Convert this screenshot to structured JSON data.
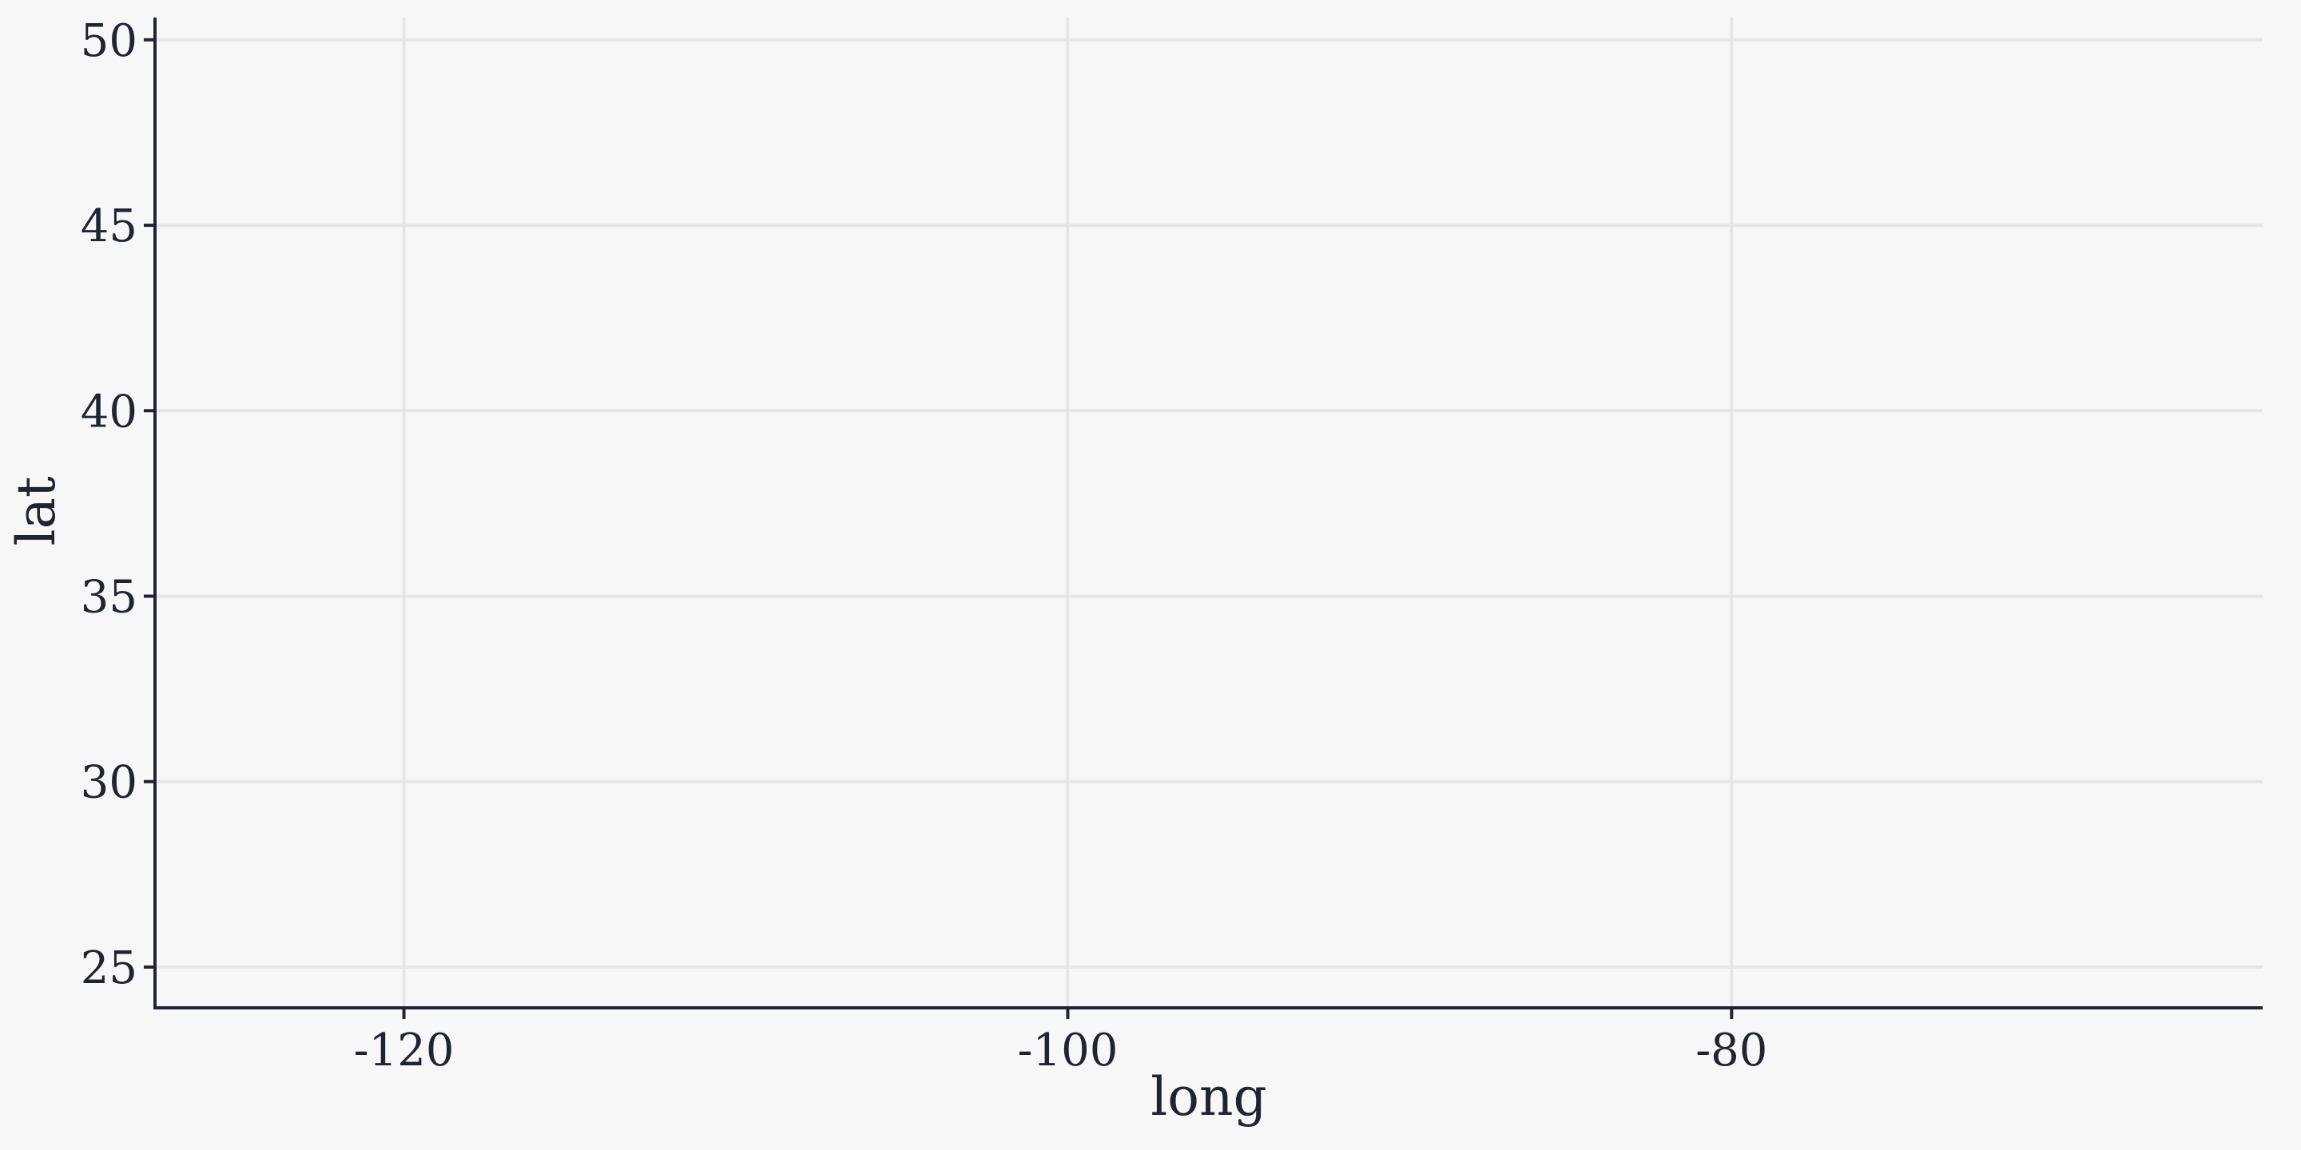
{
  "chart_data": {
    "type": "scatter",
    "title": "",
    "xlabel": "long",
    "ylabel": "lat",
    "xlim": [
      -127.5,
      -64.0
    ],
    "ylim": [
      23.9,
      50.6
    ],
    "x_ticks": [
      -120,
      -100,
      -80
    ],
    "x_tick_labels": [
      "-120",
      "-100",
      "-80"
    ],
    "y_ticks": [
      25,
      30,
      35,
      40,
      45,
      50
    ],
    "y_tick_labels": [
      "25",
      "30",
      "35",
      "40",
      "45",
      "50"
    ],
    "grid": true,
    "series": [],
    "colors": {
      "background": "#f7f7f7",
      "grid": "#e6e6e6",
      "axis": "#1f2433",
      "text": "#1f2433"
    }
  }
}
